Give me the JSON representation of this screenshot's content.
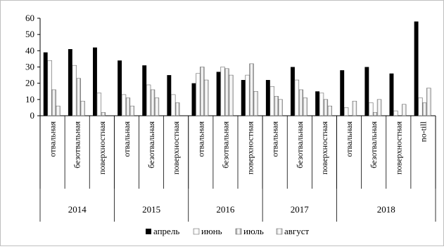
{
  "chart_data": {
    "type": "bar",
    "title": "",
    "xlabel": "",
    "ylabel": "",
    "ylim": [
      0,
      60
    ],
    "yticks": [
      0,
      10,
      20,
      30,
      40,
      50,
      60
    ],
    "grid": false,
    "legend_position": "bottom",
    "groups": [
      {
        "label": "2014",
        "categories": [
          "отвальная",
          "безотвальная",
          "поверхностная"
        ]
      },
      {
        "label": "2015",
        "categories": [
          "отвальная",
          "безотвальная",
          "поверхностная"
        ]
      },
      {
        "label": "2016",
        "categories": [
          "отвальная",
          "безотвальная",
          "поверхностная"
        ]
      },
      {
        "label": "2017",
        "categories": [
          "отвальная",
          "безотвальная",
          "поверхностная"
        ]
      },
      {
        "label": "2018",
        "categories": [
          "отвальная",
          "безотвальная",
          "поверхностная",
          "no-till"
        ]
      }
    ],
    "series": [
      {
        "name": "апрель",
        "color": "#000000",
        "values": [
          39,
          41,
          42,
          34,
          31,
          25,
          20,
          27,
          22,
          22,
          30,
          15,
          28,
          30,
          26,
          58
        ]
      },
      {
        "name": "июнь",
        "color": "#e6e6e6",
        "values": [
          34,
          31,
          14,
          13,
          19,
          13,
          26,
          30,
          25,
          18,
          22,
          14,
          5,
          8,
          3,
          11
        ]
      },
      {
        "name": "июль",
        "color": "#7f7f7f",
        "values": [
          16,
          23,
          2,
          11,
          16,
          8,
          30,
          29,
          32,
          12,
          16,
          10,
          0,
          2,
          0,
          8
        ]
      },
      {
        "name": "август",
        "color": "#b3b3b3",
        "values": [
          6,
          9,
          0,
          6,
          11,
          0,
          22,
          25,
          15,
          10,
          11,
          6,
          9,
          10,
          7,
          17
        ]
      }
    ]
  }
}
